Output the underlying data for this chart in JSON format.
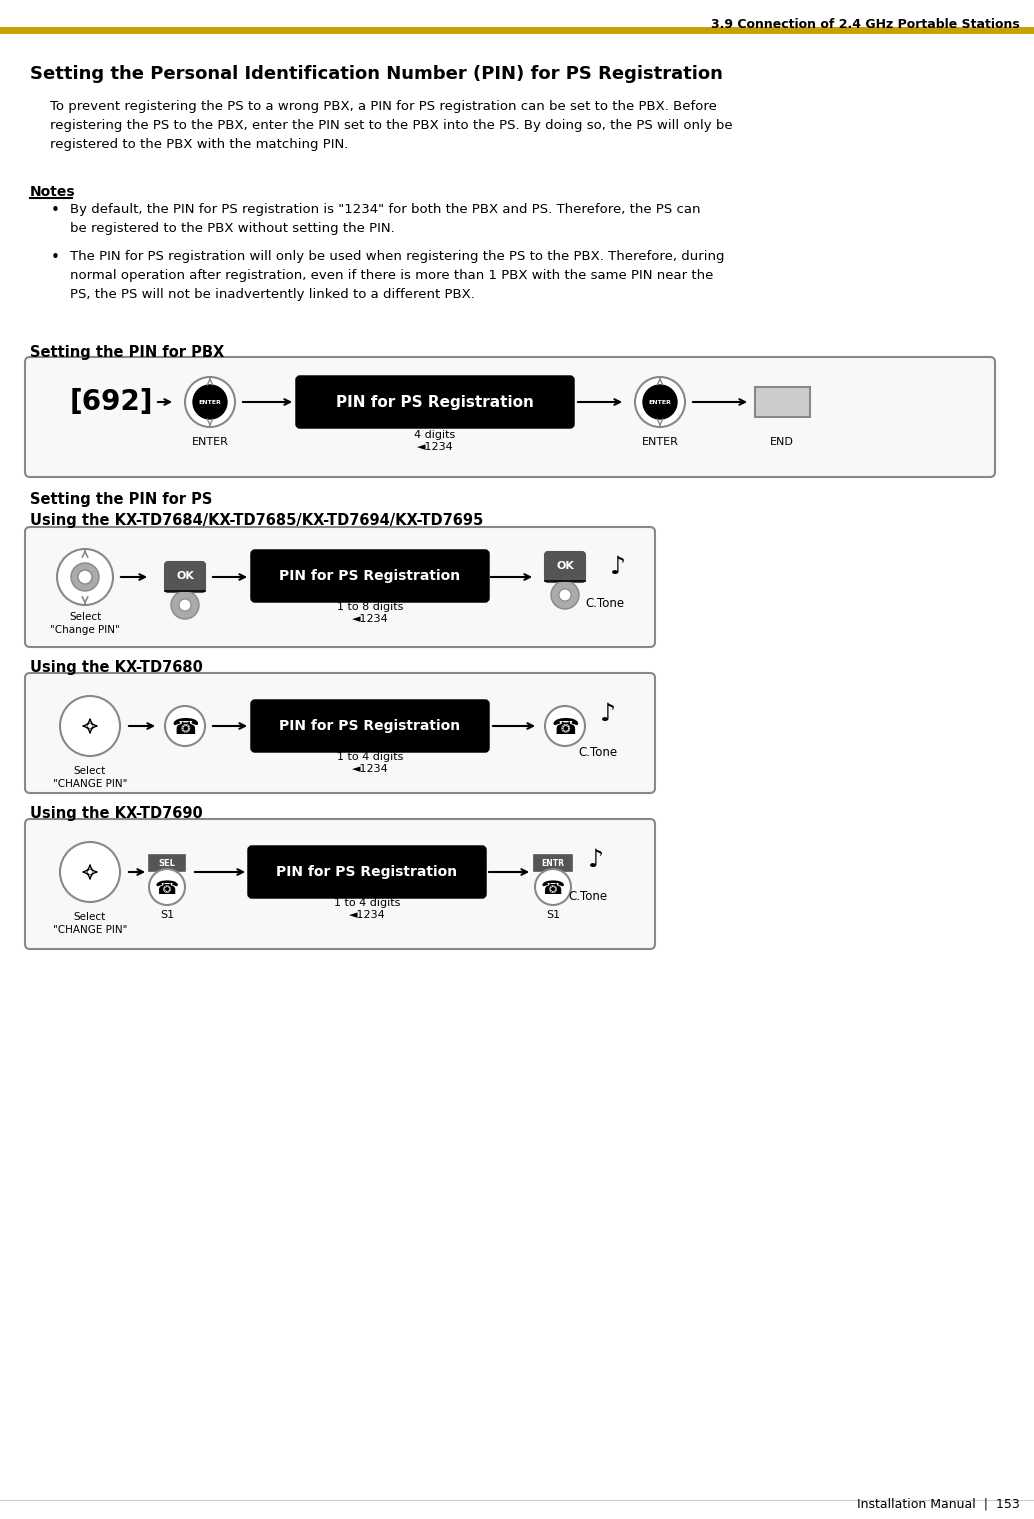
{
  "page_header": "3.9 Connection of 2.4 GHz Portable Stations",
  "page_footer": "Installation Manual  |  153",
  "header_line_color": "#C8A000",
  "main_title": "Setting the Personal Identification Number (PIN) for PS Registration",
  "intro_text": "To prevent registering the PS to a wrong PBX, a PIN for PS registration can be set to the PBX. Before\nregistering the PS to the PBX, enter the PIN set to the PBX into the PS. By doing so, the PS will only be\nregistered to the PBX with the matching PIN.",
  "notes_title": "Notes",
  "note1": "By default, the PIN for PS registration is \"1234\" for both the PBX and PS. Therefore, the PS can\nbe registered to the PBX without setting the PIN.",
  "note2": "The PIN for PS registration will only be used when registering the PS to the PBX. Therefore, during\nnormal operation after registration, even if there is more than 1 PBX with the same PIN near the\nPS, the PS will not be inadvertently linked to a different PBX.",
  "pbx_title": "Setting the PIN for PBX",
  "ps_title": "Setting the PIN for PS",
  "model1_title": "Using the KX-TD7684/KX-TD7685/KX-TD7694/KX-TD7695",
  "model2_title": "Using the KX-TD7680",
  "model3_title": "Using the KX-TD7690",
  "box_label": "PIN for PS Registration",
  "bg_color": "#ffffff",
  "box_outline_color": "#000000",
  "diagram_bg": "#f5f5f5",
  "arrow_color": "#000000",
  "text_color": "#000000"
}
